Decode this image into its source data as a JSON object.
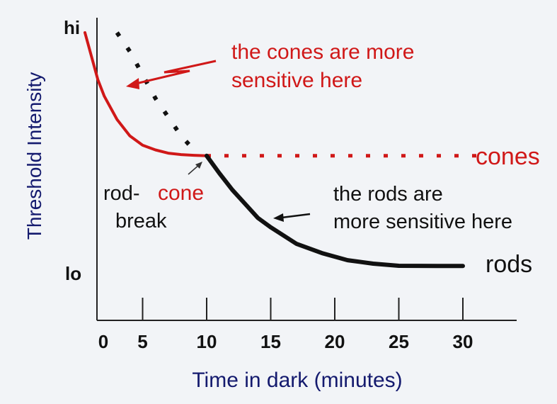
{
  "chart_data": {
    "type": "line",
    "title": "",
    "xlabel": "Time in dark (minutes)",
    "ylabel": "Threshold Intensity",
    "xlim": [
      0,
      32
    ],
    "ylim": [
      0,
      100
    ],
    "x_ticks": [
      0,
      5,
      10,
      15,
      20,
      25,
      30
    ],
    "y_ticks": [
      {
        "value": 100,
        "label": "hi"
      },
      {
        "value": 0,
        "label": "lo"
      }
    ],
    "series": [
      {
        "name": "cones",
        "color": "#d01818",
        "style": "solid",
        "points": [
          [
            0.5,
            100
          ],
          [
            1,
            90
          ],
          [
            1.5,
            80
          ],
          [
            2,
            73
          ],
          [
            3,
            63
          ],
          [
            4,
            56
          ],
          [
            5,
            52
          ],
          [
            6,
            50
          ],
          [
            7,
            48.6
          ],
          [
            8,
            48
          ],
          [
            9,
            47.7
          ],
          [
            10,
            47.5
          ]
        ]
      },
      {
        "name": "cones",
        "color": "#d01818",
        "style": "dotted",
        "points": [
          [
            10,
            47.5
          ],
          [
            15,
            47.5
          ],
          [
            20,
            47.5
          ],
          [
            25,
            47.5
          ],
          [
            30,
            47.5
          ],
          [
            32,
            47.5
          ]
        ]
      },
      {
        "name": "rods",
        "color": "#111111",
        "style": "solid",
        "points": [
          [
            10,
            47.5
          ],
          [
            11,
            40
          ],
          [
            12,
            33
          ],
          [
            13,
            27
          ],
          [
            14,
            21
          ],
          [
            15,
            17
          ],
          [
            17,
            10
          ],
          [
            19,
            6
          ],
          [
            21,
            3
          ],
          [
            23,
            1.5
          ],
          [
            25,
            0.6
          ],
          [
            28,
            0.5
          ],
          [
            30,
            0.5
          ]
        ]
      },
      {
        "name": "rods-extrapolated",
        "color": "#111111",
        "style": "dotted",
        "points": [
          [
            3,
            100
          ],
          [
            4,
            92
          ],
          [
            5,
            82
          ],
          [
            6,
            72
          ],
          [
            7,
            64
          ],
          [
            8,
            56
          ],
          [
            9,
            50
          ]
        ]
      }
    ],
    "annotations": [
      {
        "id": "cones-text",
        "lines": [
          "the cones are more",
          "sensitive here"
        ],
        "color": "#d01818"
      },
      {
        "id": "rods-text",
        "lines": [
          "the rods are",
          "more sensitive here"
        ],
        "color": "#111111"
      },
      {
        "id": "break-text",
        "parts": [
          "rod-",
          "cone",
          "break"
        ]
      }
    ],
    "series_labels": {
      "cones": "cones",
      "rods": "rods"
    },
    "grid": false
  }
}
